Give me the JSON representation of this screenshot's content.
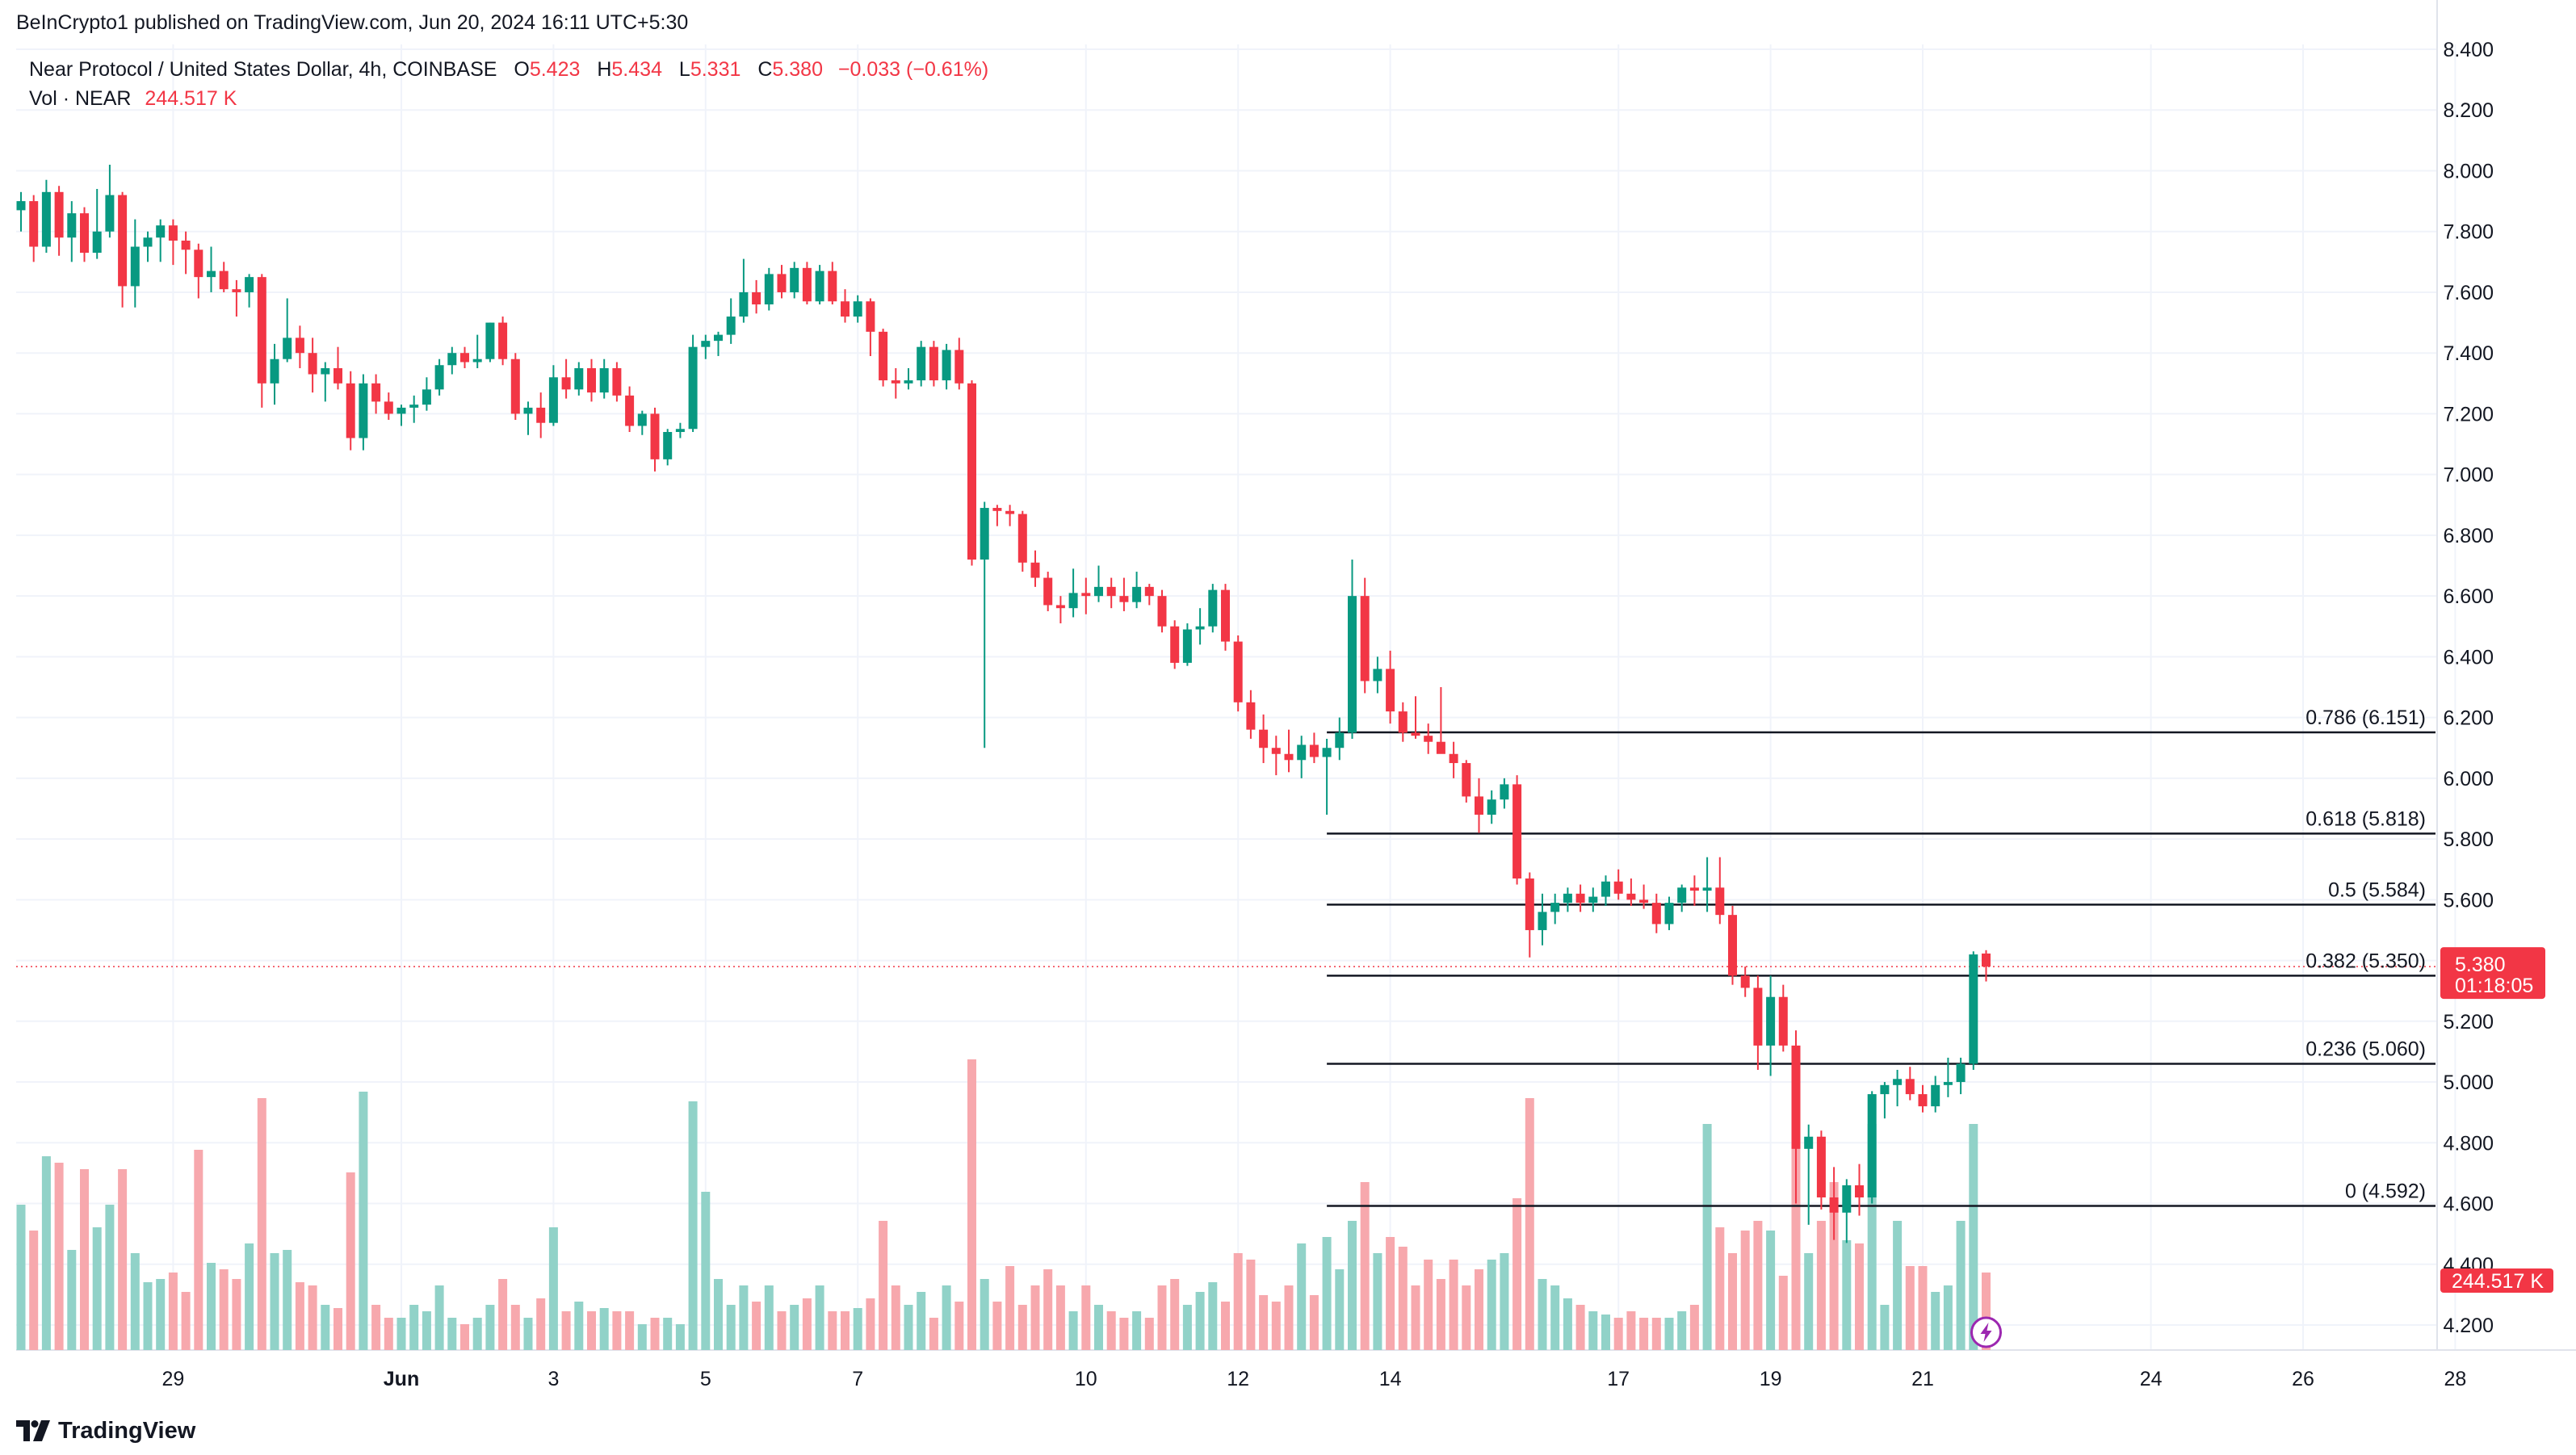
{
  "header": {
    "published_line": "BeInCrypto1 published on TradingView.com, Jun 20, 2024 16:11 UTC+5:30"
  },
  "legend": {
    "symbol": "Near Protocol / United States Dollar, 4h, COINBASE",
    "o_label": "O",
    "o_value": "5.423",
    "h_label": "H",
    "h_value": "5.434",
    "l_label": "L",
    "l_value": "5.331",
    "c_label": "C",
    "c_value": "5.380",
    "change": "−0.033 (−0.61%)",
    "vol_label": "Vol · NEAR",
    "vol_value": "244.517 K"
  },
  "price_tag": {
    "price": "5.380",
    "countdown": "01:18:05",
    "color": "#f23645"
  },
  "volume_tag": {
    "value": "244.517 K",
    "color": "#f23645"
  },
  "brand": {
    "name": "TradingView"
  },
  "colors": {
    "up": "#089981",
    "down": "#f23645",
    "up_vol": "#91d2c8",
    "down_vol": "#f7a8ad",
    "grid": "#f0f3fa"
  },
  "chart_data": {
    "type": "candlestick",
    "symbol": "NEAR/USD",
    "interval": "4h",
    "y_ticks": [
      4.2,
      4.4,
      4.6,
      4.8,
      5.0,
      5.2,
      5.4,
      5.6,
      5.8,
      6.0,
      6.2,
      6.4,
      6.6,
      6.8,
      7.0,
      7.2,
      7.4,
      7.6,
      7.8,
      8.0,
      8.2,
      8.4
    ],
    "ylim": [
      4.1,
      8.42
    ],
    "x_ticks": [
      {
        "label": "29",
        "bar": 12
      },
      {
        "label": "Jun",
        "bar": 30
      },
      {
        "label": "3",
        "bar": 42
      },
      {
        "label": "5",
        "bar": 54
      },
      {
        "label": "7",
        "bar": 66
      },
      {
        "label": "10",
        "bar": 84
      },
      {
        "label": "12",
        "bar": 96
      },
      {
        "label": "14",
        "bar": 108
      },
      {
        "label": "17",
        "bar": 126
      },
      {
        "label": "19",
        "bar": 138
      },
      {
        "label": "21",
        "bar": 150
      },
      {
        "label": "24",
        "bar": 168
      },
      {
        "label": "26",
        "bar": 180
      },
      {
        "label": "28",
        "bar": 192
      }
    ],
    "fib_levels": [
      {
        "label": "0.786 (6.151)",
        "value": 6.151
      },
      {
        "label": "0.618 (5.818)",
        "value": 5.818
      },
      {
        "label": "0.5 (5.584)",
        "value": 5.584
      },
      {
        "label": "0.382 (5.350)",
        "value": 5.35
      },
      {
        "label": "0.236 (5.060)",
        "value": 5.06
      },
      {
        "label": "0 (4.592)",
        "value": 4.592
      }
    ],
    "fib_start_bar": 103,
    "last_price": 5.38,
    "candles": [
      [
        7.87,
        7.93,
        7.8,
        7.9,
        45
      ],
      [
        7.9,
        7.92,
        7.7,
        7.75,
        37
      ],
      [
        7.75,
        7.97,
        7.73,
        7.93,
        60
      ],
      [
        7.93,
        7.95,
        7.72,
        7.78,
        58
      ],
      [
        7.78,
        7.9,
        7.7,
        7.86,
        31
      ],
      [
        7.86,
        7.88,
        7.7,
        7.73,
        56
      ],
      [
        7.73,
        7.94,
        7.71,
        7.8,
        38
      ],
      [
        7.8,
        8.02,
        7.78,
        7.92,
        45
      ],
      [
        7.92,
        7.93,
        7.55,
        7.62,
        56
      ],
      [
        7.62,
        7.84,
        7.55,
        7.75,
        30
      ],
      [
        7.75,
        7.8,
        7.7,
        7.78,
        21
      ],
      [
        7.78,
        7.84,
        7.7,
        7.82,
        22
      ],
      [
        7.82,
        7.84,
        7.69,
        7.77,
        24
      ],
      [
        7.77,
        7.8,
        7.66,
        7.74,
        18
      ],
      [
        7.74,
        7.76,
        7.58,
        7.65,
        62
      ],
      [
        7.65,
        7.75,
        7.6,
        7.67,
        27
      ],
      [
        7.67,
        7.7,
        7.6,
        7.61,
        25
      ],
      [
        7.61,
        7.64,
        7.52,
        7.6,
        22
      ],
      [
        7.6,
        7.66,
        7.55,
        7.65,
        33
      ],
      [
        7.65,
        7.66,
        7.22,
        7.3,
        78
      ],
      [
        7.3,
        7.43,
        7.23,
        7.38,
        30
      ],
      [
        7.38,
        7.58,
        7.37,
        7.45,
        31
      ],
      [
        7.45,
        7.49,
        7.35,
        7.4,
        21
      ],
      [
        7.4,
        7.45,
        7.27,
        7.33,
        20
      ],
      [
        7.33,
        7.37,
        7.24,
        7.35,
        14
      ],
      [
        7.35,
        7.42,
        7.28,
        7.3,
        13
      ],
      [
        7.3,
        7.34,
        7.08,
        7.12,
        55
      ],
      [
        7.12,
        7.33,
        7.08,
        7.3,
        80
      ],
      [
        7.3,
        7.33,
        7.2,
        7.24,
        14
      ],
      [
        7.24,
        7.27,
        7.18,
        7.2,
        10
      ],
      [
        7.2,
        7.23,
        7.16,
        7.22,
        10
      ],
      [
        7.22,
        7.26,
        7.17,
        7.23,
        14
      ],
      [
        7.23,
        7.32,
        7.21,
        7.28,
        12
      ],
      [
        7.28,
        7.38,
        7.26,
        7.36,
        20
      ],
      [
        7.36,
        7.42,
        7.33,
        7.4,
        10
      ],
      [
        7.4,
        7.42,
        7.35,
        7.37,
        8
      ],
      [
        7.37,
        7.46,
        7.35,
        7.38,
        10
      ],
      [
        7.38,
        7.5,
        7.37,
        7.5,
        14
      ],
      [
        7.5,
        7.52,
        7.36,
        7.38,
        22
      ],
      [
        7.38,
        7.4,
        7.18,
        7.2,
        14
      ],
      [
        7.2,
        7.24,
        7.13,
        7.22,
        10
      ],
      [
        7.22,
        7.27,
        7.12,
        7.17,
        16
      ],
      [
        7.17,
        7.36,
        7.16,
        7.32,
        38
      ],
      [
        7.32,
        7.38,
        7.25,
        7.28,
        12
      ],
      [
        7.28,
        7.37,
        7.26,
        7.35,
        15
      ],
      [
        7.35,
        7.38,
        7.24,
        7.27,
        12
      ],
      [
        7.27,
        7.38,
        7.25,
        7.35,
        13
      ],
      [
        7.35,
        7.37,
        7.24,
        7.26,
        12
      ],
      [
        7.26,
        7.29,
        7.14,
        7.16,
        12
      ],
      [
        7.16,
        7.21,
        7.13,
        7.2,
        8
      ],
      [
        7.2,
        7.22,
        7.01,
        7.05,
        10
      ],
      [
        7.05,
        7.15,
        7.03,
        7.14,
        10
      ],
      [
        7.14,
        7.17,
        7.12,
        7.15,
        8
      ],
      [
        7.15,
        7.46,
        7.14,
        7.42,
        77
      ],
      [
        7.42,
        7.46,
        7.38,
        7.44,
        49
      ],
      [
        7.44,
        7.47,
        7.39,
        7.46,
        22
      ],
      [
        7.46,
        7.58,
        7.43,
        7.52,
        14
      ],
      [
        7.52,
        7.71,
        7.5,
        7.6,
        20
      ],
      [
        7.6,
        7.64,
        7.53,
        7.56,
        15
      ],
      [
        7.56,
        7.68,
        7.54,
        7.66,
        20
      ],
      [
        7.66,
        7.69,
        7.58,
        7.6,
        12
      ],
      [
        7.6,
        7.7,
        7.58,
        7.68,
        14
      ],
      [
        7.68,
        7.7,
        7.56,
        7.57,
        16
      ],
      [
        7.57,
        7.69,
        7.56,
        7.67,
        20
      ],
      [
        7.67,
        7.7,
        7.56,
        7.57,
        12
      ],
      [
        7.57,
        7.61,
        7.5,
        7.52,
        12
      ],
      [
        7.52,
        7.59,
        7.5,
        7.57,
        13
      ],
      [
        7.57,
        7.58,
        7.39,
        7.47,
        16
      ],
      [
        7.47,
        7.48,
        7.29,
        7.31,
        40
      ],
      [
        7.31,
        7.35,
        7.25,
        7.3,
        20
      ],
      [
        7.3,
        7.35,
        7.28,
        7.31,
        14
      ],
      [
        7.31,
        7.44,
        7.29,
        7.42,
        18
      ],
      [
        7.42,
        7.44,
        7.29,
        7.31,
        10
      ],
      [
        7.31,
        7.43,
        7.28,
        7.41,
        20
      ],
      [
        7.41,
        7.45,
        7.28,
        7.3,
        15
      ],
      [
        7.3,
        7.31,
        6.7,
        6.72,
        90
      ],
      [
        6.72,
        6.91,
        6.1,
        6.89,
        22
      ],
      [
        6.89,
        6.9,
        6.83,
        6.88,
        15
      ],
      [
        6.88,
        6.9,
        6.83,
        6.87,
        26
      ],
      [
        6.87,
        6.88,
        6.68,
        6.71,
        14
      ],
      [
        6.71,
        6.75,
        6.63,
        6.66,
        20
      ],
      [
        6.66,
        6.68,
        6.55,
        6.57,
        25
      ],
      [
        6.57,
        6.6,
        6.51,
        6.56,
        20
      ],
      [
        6.56,
        6.69,
        6.53,
        6.61,
        12
      ],
      [
        6.61,
        6.66,
        6.54,
        6.6,
        20
      ],
      [
        6.6,
        6.7,
        6.58,
        6.63,
        14
      ],
      [
        6.63,
        6.66,
        6.56,
        6.6,
        12
      ],
      [
        6.6,
        6.66,
        6.55,
        6.58,
        10
      ],
      [
        6.58,
        6.68,
        6.56,
        6.63,
        12
      ],
      [
        6.63,
        6.64,
        6.57,
        6.6,
        10
      ],
      [
        6.6,
        6.62,
        6.48,
        6.5,
        20
      ],
      [
        6.5,
        6.52,
        6.36,
        6.38,
        22
      ],
      [
        6.38,
        6.51,
        6.37,
        6.49,
        14
      ],
      [
        6.49,
        6.56,
        6.44,
        6.5,
        18
      ],
      [
        6.5,
        6.64,
        6.48,
        6.62,
        21
      ],
      [
        6.62,
        6.64,
        6.42,
        6.45,
        15
      ],
      [
        6.45,
        6.47,
        6.22,
        6.25,
        30
      ],
      [
        6.25,
        6.29,
        6.13,
        6.16,
        28
      ],
      [
        6.16,
        6.21,
        6.05,
        6.1,
        17
      ],
      [
        6.1,
        6.14,
        6.01,
        6.08,
        15
      ],
      [
        6.08,
        6.16,
        6.02,
        6.06,
        20
      ],
      [
        6.06,
        6.14,
        6.0,
        6.11,
        33
      ],
      [
        6.11,
        6.15,
        6.05,
        6.07,
        17
      ],
      [
        6.07,
        6.13,
        5.88,
        6.1,
        35
      ],
      [
        6.1,
        6.2,
        6.06,
        6.15,
        25
      ],
      [
        6.15,
        6.72,
        6.13,
        6.6,
        40
      ],
      [
        6.6,
        6.66,
        6.28,
        6.32,
        52
      ],
      [
        6.32,
        6.4,
        6.28,
        6.36,
        30
      ],
      [
        6.36,
        6.42,
        6.18,
        6.22,
        35
      ],
      [
        6.22,
        6.25,
        6.12,
        6.15,
        32
      ],
      [
        6.15,
        6.27,
        6.13,
        6.14,
        20
      ],
      [
        6.14,
        6.18,
        6.08,
        6.12,
        28
      ],
      [
        6.12,
        6.3,
        6.1,
        6.08,
        22
      ],
      [
        6.08,
        6.12,
        6.0,
        6.05,
        28
      ],
      [
        6.05,
        6.06,
        5.92,
        5.94,
        20
      ],
      [
        5.94,
        6.0,
        5.82,
        5.88,
        25
      ],
      [
        5.88,
        5.96,
        5.85,
        5.93,
        28
      ],
      [
        5.93,
        6.0,
        5.9,
        5.98,
        30
      ],
      [
        5.98,
        6.01,
        5.65,
        5.67,
        47
      ],
      [
        5.67,
        5.69,
        5.41,
        5.5,
        78
      ],
      [
        5.5,
        5.62,
        5.45,
        5.56,
        22
      ],
      [
        5.56,
        5.62,
        5.52,
        5.59,
        20
      ],
      [
        5.59,
        5.64,
        5.56,
        5.62,
        16
      ],
      [
        5.62,
        5.65,
        5.56,
        5.59,
        14
      ],
      [
        5.59,
        5.64,
        5.56,
        5.61,
        12
      ],
      [
        5.61,
        5.68,
        5.58,
        5.66,
        11
      ],
      [
        5.66,
        5.7,
        5.6,
        5.62,
        10
      ],
      [
        5.62,
        5.67,
        5.58,
        5.6,
        12
      ],
      [
        5.6,
        5.65,
        5.57,
        5.59,
        10
      ],
      [
        5.59,
        5.62,
        5.49,
        5.52,
        10
      ],
      [
        5.52,
        5.61,
        5.5,
        5.59,
        10
      ],
      [
        5.59,
        5.65,
        5.56,
        5.64,
        12
      ],
      [
        5.64,
        5.68,
        5.58,
        5.63,
        14
      ],
      [
        5.63,
        5.74,
        5.56,
        5.64,
        70
      ],
      [
        5.64,
        5.74,
        5.52,
        5.55,
        38
      ],
      [
        5.55,
        5.58,
        5.32,
        5.35,
        30
      ],
      [
        5.35,
        5.38,
        5.28,
        5.31,
        37
      ],
      [
        5.31,
        5.35,
        5.04,
        5.12,
        40
      ],
      [
        5.12,
        5.35,
        5.02,
        5.28,
        37
      ],
      [
        5.28,
        5.32,
        5.1,
        5.12,
        23
      ],
      [
        5.12,
        5.17,
        4.6,
        4.78,
        72
      ],
      [
        4.78,
        4.86,
        4.53,
        4.82,
        30
      ],
      [
        4.82,
        4.84,
        4.58,
        4.62,
        40
      ],
      [
        4.62,
        4.72,
        4.48,
        4.57,
        52
      ],
      [
        4.57,
        4.68,
        4.47,
        4.66,
        34
      ],
      [
        4.66,
        4.73,
        4.56,
        4.62,
        33
      ],
      [
        4.62,
        4.97,
        4.6,
        4.96,
        70
      ],
      [
        4.96,
        5.0,
        4.88,
        4.99,
        14
      ],
      [
        4.99,
        5.04,
        4.92,
        5.01,
        40
      ],
      [
        5.01,
        5.05,
        4.94,
        4.96,
        26
      ],
      [
        4.96,
        4.99,
        4.9,
        4.92,
        26
      ],
      [
        4.92,
        5.02,
        4.9,
        4.99,
        18
      ],
      [
        4.99,
        5.08,
        4.95,
        5.0,
        20
      ],
      [
        5.0,
        5.08,
        4.96,
        5.06,
        40
      ],
      [
        5.06,
        5.43,
        5.04,
        5.42,
        70
      ],
      [
        5.423,
        5.434,
        5.331,
        5.38,
        24
      ]
    ]
  }
}
